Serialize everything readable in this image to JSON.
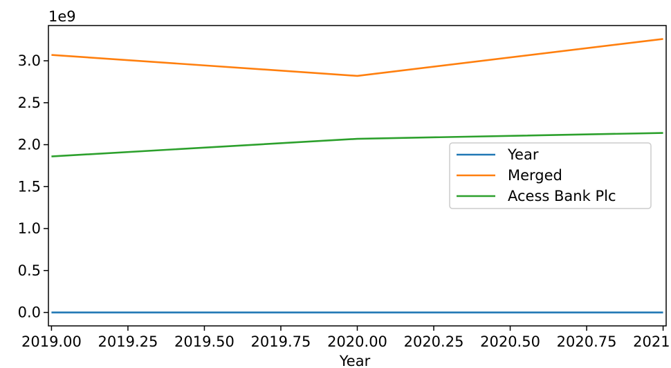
{
  "chart_data": {
    "type": "line",
    "title": "",
    "xlabel": "Year",
    "ylabel": "",
    "y_offset_label": "1e9",
    "x": [
      2019,
      2020,
      2021
    ],
    "xlim": [
      2018.99,
      2021.01
    ],
    "ylim": [
      -0.16,
      3.42
    ],
    "x_ticks": [
      2019.0,
      2019.25,
      2019.5,
      2019.75,
      2020.0,
      2020.25,
      2020.5,
      2020.75,
      2021.0
    ],
    "x_tick_labels": [
      "2019.00",
      "2019.25",
      "2019.50",
      "2019.75",
      "2020.00",
      "2020.25",
      "2020.50",
      "2020.75",
      "2021.00"
    ],
    "y_ticks": [
      0.0,
      0.5,
      1.0,
      1.5,
      2.0,
      2.5,
      3.0
    ],
    "y_tick_labels": [
      "0.0",
      "0.5",
      "1.0",
      "1.5",
      "2.0",
      "2.5",
      "3.0"
    ],
    "grid": false,
    "legend_position": "center-right",
    "series": [
      {
        "name": "Year",
        "color": "#1f77b4",
        "values": [
          2.019e-06,
          2.02e-06,
          2.021e-06
        ]
      },
      {
        "name": "Merged",
        "color": "#ff7f0e",
        "values": [
          3.07,
          2.82,
          3.26
        ]
      },
      {
        "name": "Acess Bank Plc",
        "color": "#2ca02c",
        "values": [
          1.86,
          2.07,
          2.14
        ]
      }
    ]
  }
}
